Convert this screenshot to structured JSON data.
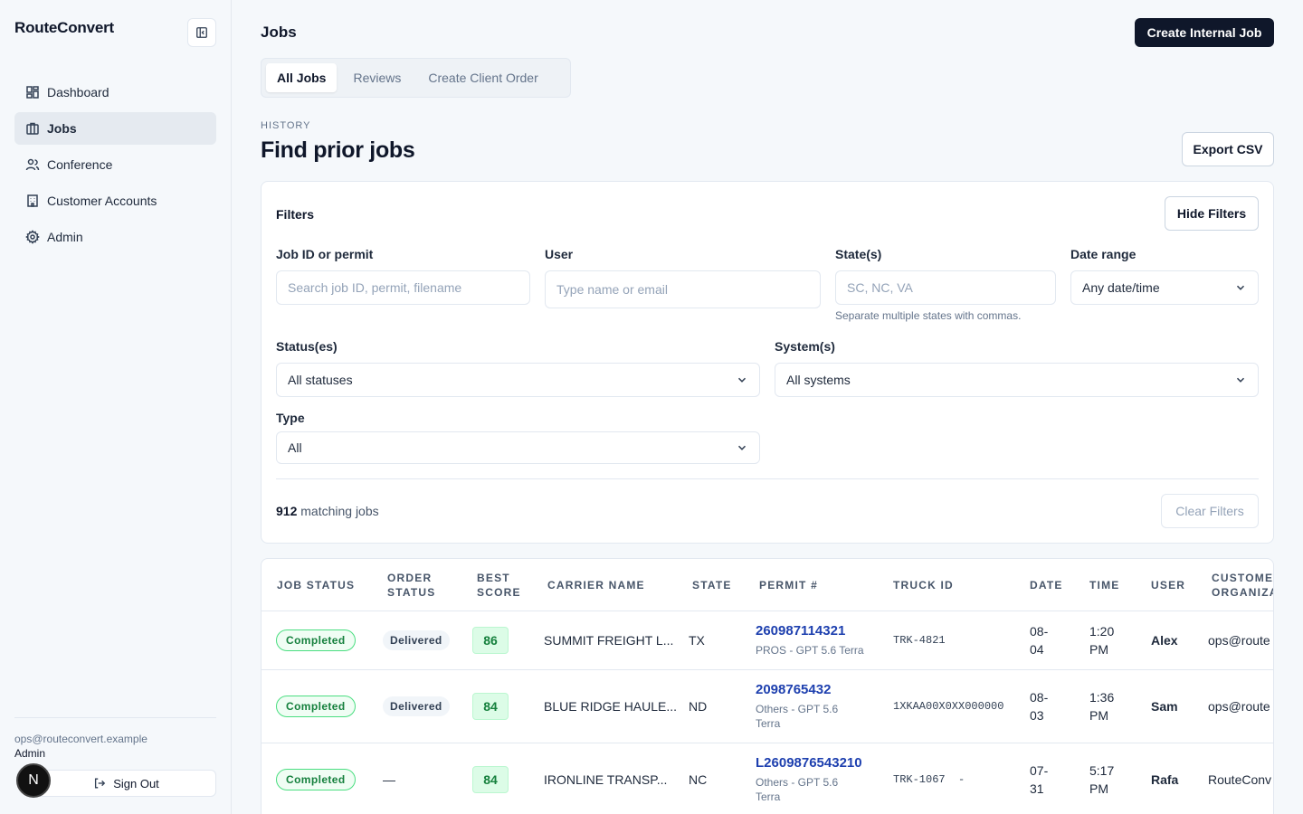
{
  "app": {
    "name": "RouteConvert"
  },
  "sidebar": {
    "items": [
      {
        "label": "Dashboard",
        "icon": "grid-icon"
      },
      {
        "label": "Jobs",
        "icon": "briefcase-icon",
        "active": true
      },
      {
        "label": "Conference",
        "icon": "users-icon"
      },
      {
        "label": "Customer Accounts",
        "icon": "building-icon"
      },
      {
        "label": "Admin",
        "icon": "gear-icon"
      }
    ],
    "user_email": "ops@routeconvert.example",
    "user_role": "Admin",
    "avatar_initial": "N",
    "signout_label": "Sign Out"
  },
  "header": {
    "title": "Jobs",
    "create_label": "Create Internal Job"
  },
  "tabs": [
    {
      "label": "All Jobs",
      "active": true
    },
    {
      "label": "Reviews"
    },
    {
      "label": "Create Client Order"
    }
  ],
  "section": {
    "eyebrow": "HISTORY",
    "title": "Find prior jobs",
    "export_label": "Export CSV"
  },
  "filters": {
    "title": "Filters",
    "hide_label": "Hide Filters",
    "job_id": {
      "label": "Job ID or permit",
      "placeholder": "Search job ID, permit, filename"
    },
    "user": {
      "label": "User",
      "placeholder": "Type name or email"
    },
    "states": {
      "label": "State(s)",
      "placeholder": "SC, NC, VA",
      "hint": "Separate multiple states with commas."
    },
    "date_range": {
      "label": "Date range",
      "value": "Any date/time"
    },
    "statuses": {
      "label": "Status(es)",
      "value": "All statuses"
    },
    "systems": {
      "label": "System(s)",
      "value": "All systems"
    },
    "type": {
      "label": "Type",
      "value": "All"
    },
    "matching_count": "912",
    "matching_text": " matching jobs",
    "clear_label": "Clear Filters"
  },
  "table": {
    "headers": [
      "JOB STATUS",
      "ORDER\nSTATUS",
      "BEST\nSCORE",
      "CARRIER NAME",
      "STATE",
      "PERMIT #",
      "TRUCK ID",
      "DATE",
      "TIME",
      "USER",
      "CUSTOMER\nORGANIZA"
    ],
    "rows": [
      {
        "job_status": "Completed",
        "order_status": "Delivered",
        "score": "86",
        "carrier": "SUMMIT FREIGHT L...",
        "state": "TX",
        "permit": "260987114321",
        "permit_sub": "PROS - GPT 5.6 Terra",
        "truck": "TRK-4821",
        "date": "08-\n04",
        "time": "1:20\nPM",
        "user": "Alex",
        "org": "ops@route"
      },
      {
        "job_status": "Completed",
        "order_status": "Delivered",
        "score": "84",
        "carrier": "BLUE RIDGE HAULE...",
        "state": "ND",
        "permit": "2098765432",
        "permit_sub": "Others - GPT 5.6\nTerra",
        "truck": "1XKAA00X0XX000000",
        "date": "08-\n03",
        "time": "1:36\nPM",
        "user": "Sam",
        "org": "ops@route"
      },
      {
        "job_status": "Completed",
        "order_status": "—",
        "score": "84",
        "carrier": "IRONLINE TRANSP...",
        "state": "NC",
        "permit": "L2609876543210",
        "permit_sub": "Others - GPT 5.6\nTerra",
        "truck": "TRK-1067  -",
        "date": "07-\n31",
        "time": "5:17\nPM",
        "user": "Rafa",
        "org": "RouteConv"
      }
    ]
  }
}
